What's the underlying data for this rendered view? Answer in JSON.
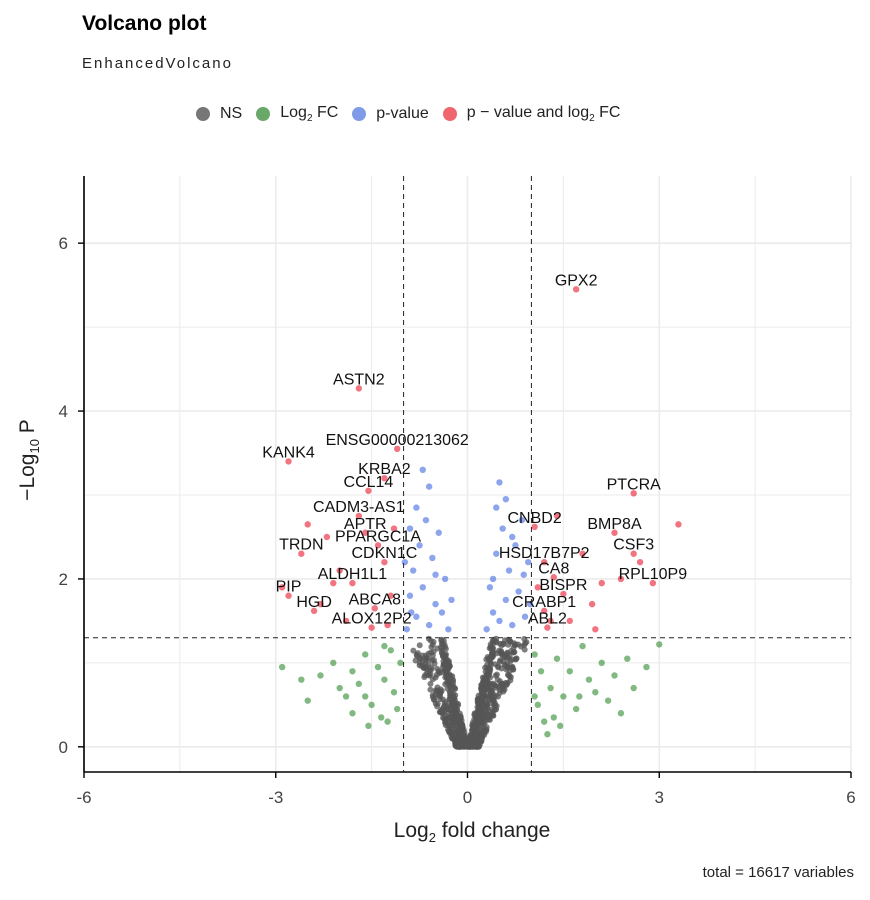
{
  "title": "Volcano plot",
  "subtitle": "EnhancedVolcano",
  "caption": "total = 16617 variables",
  "legend": [
    {
      "label": "NS",
      "color": "#555555"
    },
    {
      "label_main": "Log",
      "label_sub": "2",
      "label_tail": " FC",
      "color": "#2e8b2e"
    },
    {
      "label": "p-value",
      "color": "#4169e1"
    },
    {
      "label_main": "p − value and log",
      "label_sub": "2",
      "label_tail": " FC",
      "color": "#e8182b"
    }
  ],
  "chart_data": {
    "type": "scatter",
    "title": "Volcano plot",
    "subtitle": "EnhancedVolcano",
    "xlabel": {
      "main": "Log",
      "sub": "2",
      "tail": " fold change"
    },
    "ylabel": {
      "main": "−Log",
      "sub": "10",
      "tail": " P"
    },
    "xlim": [
      -6,
      6
    ],
    "ylim": [
      -0.3,
      6.8
    ],
    "xticks": [
      -6,
      -3,
      0,
      3,
      6
    ],
    "xtick_labels": [
      "-6",
      "-3",
      "0",
      "3",
      "6"
    ],
    "yticks": [
      0,
      2,
      4,
      6
    ],
    "ytick_labels": [
      "0",
      "2",
      "4",
      "6"
    ],
    "grid": true,
    "fc_cutoff": 1,
    "p_cutoff_log10": 1.3,
    "legend_position": "top",
    "colors": {
      "ns": "#555555",
      "fc": "#2e8b2e",
      "p": "#4169e1",
      "both": "#e8182b"
    },
    "labeled_genes": [
      {
        "name": "GPX2",
        "x": 1.7,
        "y": 5.45
      },
      {
        "name": "ASTN2",
        "x": -1.7,
        "y": 4.27
      },
      {
        "name": "ENSG00000213062",
        "x": -1.1,
        "y": 3.55
      },
      {
        "name": "KANK4",
        "x": -2.8,
        "y": 3.4
      },
      {
        "name": "KRBA2",
        "x": -1.3,
        "y": 3.2
      },
      {
        "name": "CCL14",
        "x": -1.55,
        "y": 3.05
      },
      {
        "name": "PTCRA",
        "x": 2.6,
        "y": 3.02
      },
      {
        "name": "CADM3-AS1",
        "x": -1.7,
        "y": 2.75
      },
      {
        "name": "CNBD2",
        "x": 1.05,
        "y": 2.62
      },
      {
        "name": "BMP8A",
        "x": 2.3,
        "y": 2.55
      },
      {
        "name": "APTR",
        "x": -1.6,
        "y": 2.55
      },
      {
        "name": "PPARGC1A",
        "x": -1.4,
        "y": 2.4
      },
      {
        "name": "TRDN",
        "x": -2.6,
        "y": 2.3
      },
      {
        "name": "CSF3",
        "x": 2.6,
        "y": 2.3
      },
      {
        "name": "CDKN1C",
        "x": -1.3,
        "y": 2.2
      },
      {
        "name": "HSD17B7P2",
        "x": 1.2,
        "y": 2.2
      },
      {
        "name": "CA8",
        "x": 1.35,
        "y": 2.02
      },
      {
        "name": "ALDH1L1",
        "x": -1.8,
        "y": 1.95
      },
      {
        "name": "RPL10P9",
        "x": 2.9,
        "y": 1.95
      },
      {
        "name": "PIP",
        "x": -2.8,
        "y": 1.8
      },
      {
        "name": "BISPR",
        "x": 1.5,
        "y": 1.82
      },
      {
        "name": "ABCA8",
        "x": -1.45,
        "y": 1.65
      },
      {
        "name": "HGD",
        "x": -2.4,
        "y": 1.62
      },
      {
        "name": "CRABP1",
        "x": 1.2,
        "y": 1.62
      },
      {
        "name": "ALOX12P2",
        "x": -1.5,
        "y": 1.42
      },
      {
        "name": "ABL2",
        "x": 1.25,
        "y": 1.42
      }
    ],
    "series": [
      {
        "name": "NS",
        "type": "cloud",
        "note_points": "dense funnel of non-significant points, |log2FC| < 1 and -log10P < 1.3"
      },
      {
        "name": "Log2 FC",
        "points": [
          [
            -2.9,
            0.95
          ],
          [
            -2.6,
            0.8
          ],
          [
            -2.3,
            0.85
          ],
          [
            -2.1,
            1.0
          ],
          [
            -1.9,
            0.6
          ],
          [
            -1.8,
            0.9
          ],
          [
            -1.7,
            0.75
          ],
          [
            -1.6,
            1.1
          ],
          [
            -1.5,
            0.5
          ],
          [
            -1.4,
            0.95
          ],
          [
            -1.3,
            0.8
          ],
          [
            -1.25,
            0.3
          ],
          [
            -1.2,
            1.15
          ],
          [
            -1.15,
            0.65
          ],
          [
            -1.1,
            0.45
          ],
          [
            -1.05,
            1.0
          ],
          [
            -1.35,
            0.35
          ],
          [
            -1.55,
            0.25
          ],
          [
            -2.0,
            0.7
          ],
          [
            -2.5,
            0.55
          ],
          [
            -1.8,
            0.4
          ],
          [
            -1.6,
            0.6
          ],
          [
            -1.3,
            1.2
          ],
          [
            1.05,
            1.1
          ],
          [
            1.1,
            0.5
          ],
          [
            1.15,
            0.9
          ],
          [
            1.2,
            0.3
          ],
          [
            1.3,
            0.7
          ],
          [
            1.4,
            1.05
          ],
          [
            1.5,
            0.6
          ],
          [
            1.6,
            0.9
          ],
          [
            1.7,
            0.45
          ],
          [
            1.8,
            1.2
          ],
          [
            1.9,
            0.8
          ],
          [
            2.0,
            0.65
          ],
          [
            2.1,
            1.0
          ],
          [
            2.2,
            0.55
          ],
          [
            2.3,
            0.85
          ],
          [
            2.5,
            1.05
          ],
          [
            2.6,
            0.7
          ],
          [
            2.8,
            0.95
          ],
          [
            3.0,
            1.22
          ],
          [
            1.45,
            0.25
          ],
          [
            1.25,
            0.15
          ],
          [
            1.75,
            0.6
          ],
          [
            2.4,
            0.4
          ],
          [
            1.35,
            0.35
          ],
          [
            1.05,
            0.6
          ]
        ]
      },
      {
        "name": "p-value",
        "points": [
          [
            -0.95,
            1.4
          ],
          [
            -0.9,
            1.8
          ],
          [
            -0.85,
            2.1
          ],
          [
            -0.8,
            1.55
          ],
          [
            -0.75,
            2.4
          ],
          [
            -0.7,
            1.9
          ],
          [
            -0.65,
            2.7
          ],
          [
            -0.6,
            1.45
          ],
          [
            -0.55,
            2.25
          ],
          [
            -0.5,
            1.7
          ],
          [
            -0.45,
            2.55
          ],
          [
            -0.4,
            1.6
          ],
          [
            -0.35,
            2.0
          ],
          [
            -0.3,
            1.4
          ],
          [
            -0.25,
            1.75
          ],
          [
            -0.8,
            2.85
          ],
          [
            -0.7,
            3.3
          ],
          [
            -0.6,
            3.1
          ],
          [
            -0.9,
            2.6
          ],
          [
            -0.5,
            2.05
          ],
          [
            -0.98,
            2.2
          ],
          [
            -0.88,
            1.6
          ],
          [
            0.3,
            1.4
          ],
          [
            0.35,
            1.9
          ],
          [
            0.4,
            1.6
          ],
          [
            0.45,
            2.3
          ],
          [
            0.5,
            1.5
          ],
          [
            0.55,
            2.6
          ],
          [
            0.6,
            1.75
          ],
          [
            0.65,
            2.1
          ],
          [
            0.7,
            1.45
          ],
          [
            0.75,
            2.4
          ],
          [
            0.8,
            1.85
          ],
          [
            0.85,
            2.7
          ],
          [
            0.9,
            1.55
          ],
          [
            0.95,
            2.2
          ],
          [
            0.5,
            3.15
          ],
          [
            0.6,
            2.95
          ],
          [
            0.45,
            2.85
          ],
          [
            0.7,
            2.5
          ],
          [
            0.88,
            2.05
          ],
          [
            0.98,
            1.7
          ],
          [
            0.4,
            2.0
          ]
        ]
      },
      {
        "name": "p - value and log2 FC",
        "points": [
          [
            -1.7,
            4.27
          ],
          [
            -1.1,
            3.55
          ],
          [
            -2.8,
            3.4
          ],
          [
            -1.3,
            3.2
          ],
          [
            -1.55,
            3.05
          ],
          [
            -1.7,
            2.75
          ],
          [
            -1.6,
            2.55
          ],
          [
            -1.4,
            2.4
          ],
          [
            -2.6,
            2.3
          ],
          [
            -1.3,
            2.2
          ],
          [
            -1.8,
            1.95
          ],
          [
            -2.8,
            1.8
          ],
          [
            -1.45,
            1.65
          ],
          [
            -2.4,
            1.62
          ],
          [
            -1.5,
            1.42
          ],
          [
            -2.2,
            2.5
          ],
          [
            -2.0,
            2.1
          ],
          [
            -1.2,
            1.8
          ],
          [
            -1.9,
            1.5
          ],
          [
            -2.3,
            1.7
          ],
          [
            -2.1,
            1.95
          ],
          [
            -1.15,
            2.6
          ],
          [
            -1.25,
            1.45
          ],
          [
            -2.9,
            1.9
          ],
          [
            -2.5,
            2.65
          ],
          [
            1.7,
            5.45
          ],
          [
            2.6,
            3.02
          ],
          [
            1.05,
            2.62
          ],
          [
            2.3,
            2.55
          ],
          [
            2.6,
            2.3
          ],
          [
            1.2,
            2.2
          ],
          [
            1.35,
            2.02
          ],
          [
            2.9,
            1.95
          ],
          [
            1.5,
            1.82
          ],
          [
            1.2,
            1.62
          ],
          [
            1.25,
            1.42
          ],
          [
            3.3,
            2.65
          ],
          [
            2.7,
            2.2
          ],
          [
            1.6,
            1.5
          ],
          [
            1.8,
            2.3
          ],
          [
            1.1,
            1.9
          ],
          [
            1.95,
            1.7
          ],
          [
            2.1,
            1.95
          ],
          [
            1.4,
            2.75
          ],
          [
            2.0,
            1.4
          ],
          [
            1.3,
            1.5
          ],
          [
            2.4,
            2.0
          ]
        ]
      }
    ]
  }
}
